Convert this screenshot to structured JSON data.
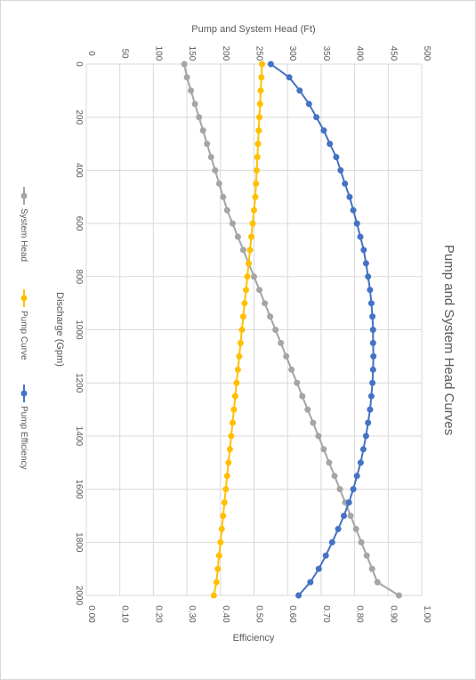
{
  "chart_data": {
    "type": "line",
    "title": "Pump and System Head Curves",
    "orientation": "rotated-90-clockwise",
    "xlabel": "Discharge (Gpm)",
    "ylabel_primary": "Pump and System Head (Ft)",
    "ylabel_secondary": "Efficiency",
    "x": [
      0,
      50,
      100,
      150,
      200,
      250,
      300,
      350,
      400,
      450,
      500,
      550,
      600,
      650,
      700,
      750,
      800,
      850,
      900,
      950,
      1000,
      1050,
      1100,
      1150,
      1200,
      1250,
      1300,
      1350,
      1400,
      1450,
      1500,
      1550,
      1600,
      1650,
      1700,
      1750,
      1800,
      1850,
      1900,
      1950,
      2000
    ],
    "xlim": [
      0,
      2000
    ],
    "x_ticks": [
      "0",
      "200",
      "400",
      "600",
      "800",
      "1000",
      "1200",
      "1400",
      "1600",
      "1800",
      "2000"
    ],
    "ylim_primary": [
      0,
      500
    ],
    "y_ticks_primary": [
      "0",
      "50",
      "100",
      "150",
      "200",
      "250",
      "300",
      "350",
      "400",
      "450",
      "500"
    ],
    "ylim_secondary": [
      0,
      1.0
    ],
    "y_ticks_secondary": [
      "0.00",
      "0.10",
      "0.20",
      "0.30",
      "0.40",
      "0.50",
      "0.60",
      "0.70",
      "0.80",
      "0.90",
      "1.00"
    ],
    "grid": true,
    "legend_position": "left",
    "series": [
      {
        "name": "System Head",
        "axis": "primary",
        "color": "#A5A5A5",
        "values": [
          146,
          150,
          156,
          162,
          168,
          174,
          180,
          186,
          192,
          198,
          204,
          210,
          218,
          226,
          234,
          242,
          250,
          258,
          266,
          274,
          282,
          290,
          298,
          306,
          314,
          322,
          330,
          338,
          346,
          354,
          362,
          370,
          378,
          386,
          394,
          402,
          410,
          418,
          426,
          434,
          466
        ]
      },
      {
        "name": "Pump Curve",
        "axis": "primary",
        "color": "#FFC000",
        "values": [
          262,
          261,
          260,
          259,
          258,
          257,
          256,
          255,
          254,
          253,
          252,
          250,
          248,
          246,
          244,
          242,
          240,
          238,
          236,
          234,
          232,
          230,
          228,
          226,
          224,
          222,
          220,
          218,
          216,
          214,
          212,
          210,
          208,
          206,
          204,
          202,
          200,
          198,
          196,
          194,
          190
        ]
      },
      {
        "name": "Pump Efficiency",
        "axis": "secondary",
        "color": "#4472C4",
        "values": [
          0.55,
          0.605,
          0.636,
          0.664,
          0.686,
          0.708,
          0.726,
          0.745,
          0.758,
          0.771,
          0.785,
          0.796,
          0.807,
          0.817,
          0.827,
          0.834,
          0.84,
          0.846,
          0.85,
          0.853,
          0.855,
          0.855,
          0.856,
          0.855,
          0.853,
          0.85,
          0.846,
          0.84,
          0.834,
          0.826,
          0.818,
          0.807,
          0.796,
          0.783,
          0.768,
          0.751,
          0.733,
          0.714,
          0.693,
          0.668,
          0.633
        ]
      }
    ]
  }
}
